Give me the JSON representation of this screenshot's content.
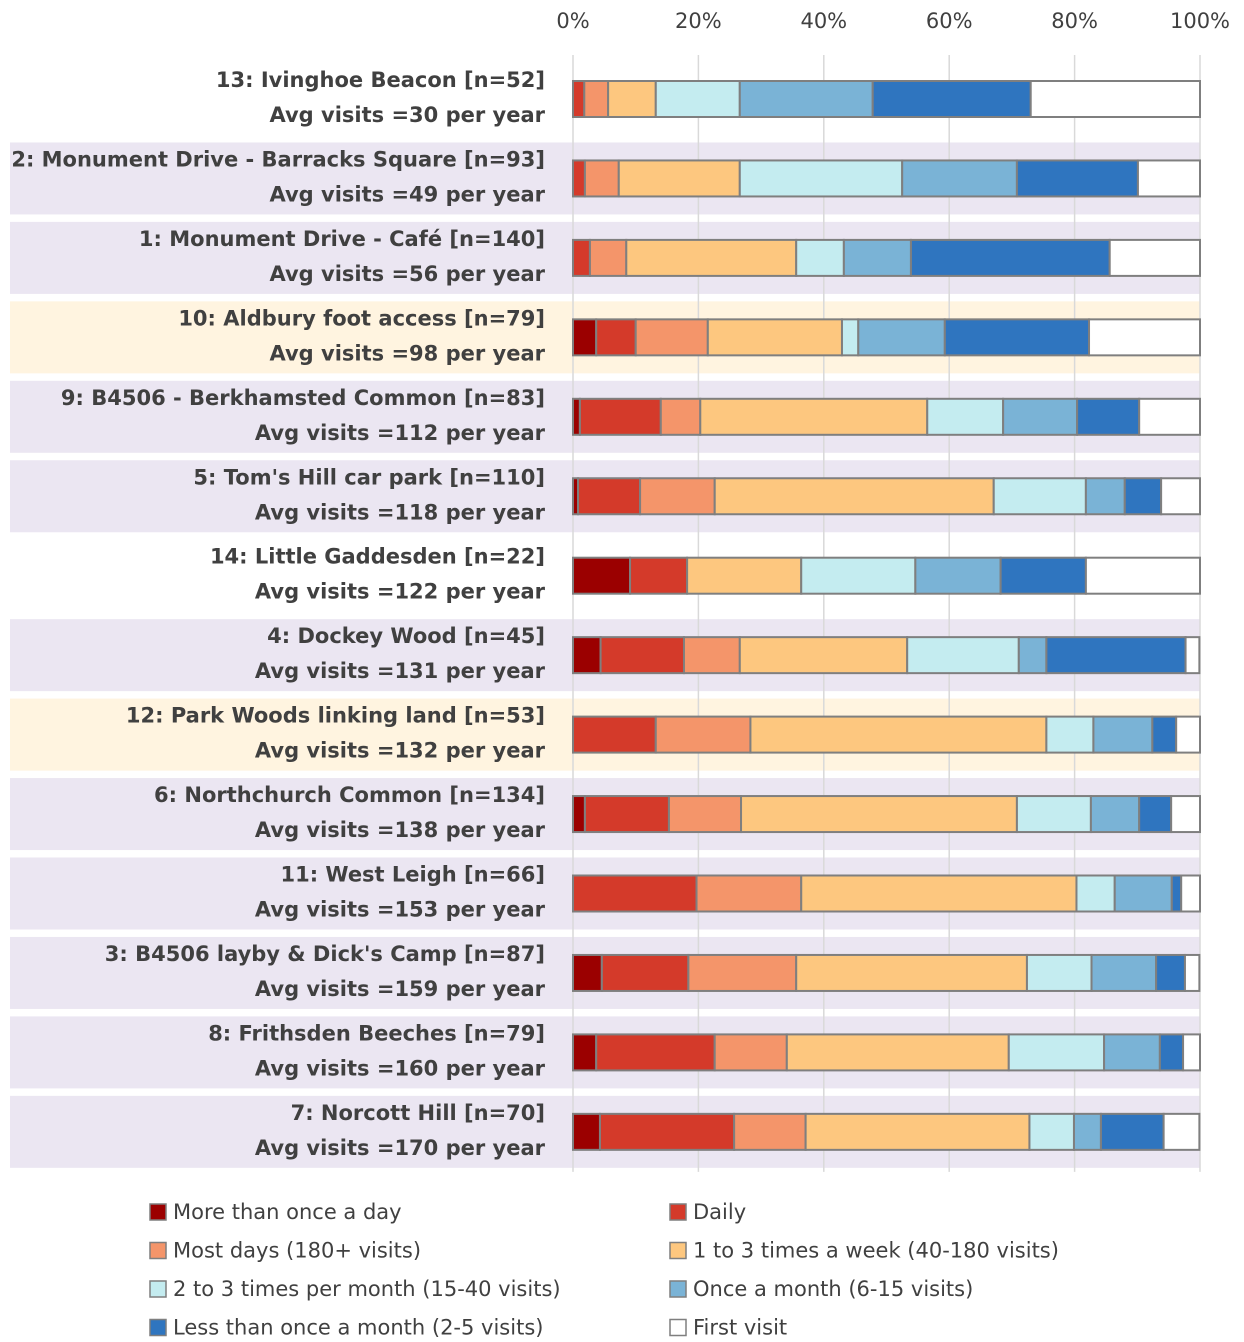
{
  "chart_data": {
    "type": "stacked_barh",
    "categories": [
      "13: Ivinghoe Beacon [n=52]",
      "2: Monument Drive - Barracks Square [n=93]",
      "1: Monument Drive - Café [n=140]",
      "10: Aldbury foot access [n=79]",
      "9: B4506 - Berkhamsted Common [n=83]",
      "5: Tom's Hill car park [n=110]",
      "14: Little Gaddesden [n=22]",
      "4: Dockey Wood [n=45]",
      "12: Park Woods linking land [n=53]",
      "6: Northchurch Common [n=134]",
      "11: West Leigh [n=66]",
      "3: B4506 layby & Dick's Camp [n=87]",
      "8: Frithsden Beeches [n=79]",
      "7: Norcott Hill [n=70]"
    ],
    "category_details": [
      "Avg visits =30 per year",
      "Avg visits =49 per year",
      "Avg visits =56 per year",
      "Avg visits =98 per year",
      "Avg visits =112 per year",
      "Avg visits =118 per year",
      "Avg visits =122 per year",
      "Avg visits =131 per year",
      "Avg visits =132 per year",
      "Avg visits =138 per year",
      "Avg visits =153 per year",
      "Avg visits =159 per year",
      "Avg visits =160 per year",
      "Avg visits =170 per year"
    ],
    "row_colors": [
      "#ffffff",
      "#ebe6f2",
      "#ebe6f2",
      "#fff4e0",
      "#ebe6f2",
      "#ebe6f2",
      "#ffffff",
      "#ebe6f2",
      "#fff4e0",
      "#ebe6f2",
      "#ebe6f2",
      "#ebe6f2",
      "#ebe6f2",
      "#ebe6f2"
    ],
    "series": [
      {
        "name": "More than once a day",
        "color": "#9b0000",
        "values": [
          0,
          0,
          0,
          3.7,
          1.1,
          0.8,
          9.1,
          4.4,
          0,
          1.9,
          0,
          4.6,
          3.7,
          4.3
        ]
      },
      {
        "name": "Daily",
        "color": "#d43a2a",
        "values": [
          1.8,
          1.9,
          2.7,
          6.3,
          12.9,
          9.9,
          9.1,
          13.3,
          13.2,
          13.4,
          19.7,
          13.8,
          18.9,
          21.4
        ]
      },
      {
        "name": "Most days (180+ visits)",
        "color": "#f4956a",
        "values": [
          3.8,
          5.4,
          5.8,
          11.5,
          6.3,
          11.9,
          0,
          8.9,
          15.1,
          11.5,
          16.7,
          17.2,
          11.5,
          11.4
        ]
      },
      {
        "name": "1 to 3 times a week (40-180 visits)",
        "color": "#fdc77f",
        "values": [
          7.6,
          19.3,
          27.1,
          21.4,
          36.2,
          44.5,
          18.2,
          26.7,
          47.2,
          44.0,
          43.9,
          36.8,
          35.4,
          35.7
        ]
      },
      {
        "name": "2 to 3 times per month (15-40 visits)",
        "color": "#c4ecf0",
        "values": [
          13.4,
          25.9,
          7.6,
          2.6,
          12.1,
          14.7,
          18.2,
          17.8,
          7.5,
          11.8,
          6.1,
          10.3,
          15.2,
          7.1
        ]
      },
      {
        "name": "Once a month (6-15 visits)",
        "color": "#7ab3d6",
        "values": [
          21.2,
          18.3,
          10.7,
          13.8,
          11.8,
          6.2,
          13.6,
          4.4,
          9.4,
          7.7,
          9.1,
          10.3,
          8.9,
          4.3
        ]
      },
      {
        "name": "Less than once a month (2-5 visits)",
        "color": "#2f75bf",
        "values": [
          25.2,
          19.3,
          31.7,
          23.0,
          9.9,
          5.8,
          13.6,
          22.2,
          3.8,
          5.1,
          1.5,
          4.6,
          3.7,
          10.0
        ]
      },
      {
        "name": "First visit",
        "color": "#ffffff",
        "values": [
          27.0,
          9.9,
          14.4,
          17.7,
          9.7,
          6.2,
          18.2,
          2.2,
          3.8,
          4.6,
          3.0,
          2.3,
          2.7,
          5.7
        ]
      }
    ],
    "xlim": [
      0,
      100
    ],
    "xticks": [
      {
        "value": 0,
        "label": "0%"
      },
      {
        "value": 20,
        "label": "20%"
      },
      {
        "value": 40,
        "label": "40%"
      },
      {
        "value": 60,
        "label": "60%"
      },
      {
        "value": 80,
        "label": "80%"
      },
      {
        "value": 100,
        "label": "100%"
      }
    ],
    "grid": true,
    "legend": "bottom"
  }
}
